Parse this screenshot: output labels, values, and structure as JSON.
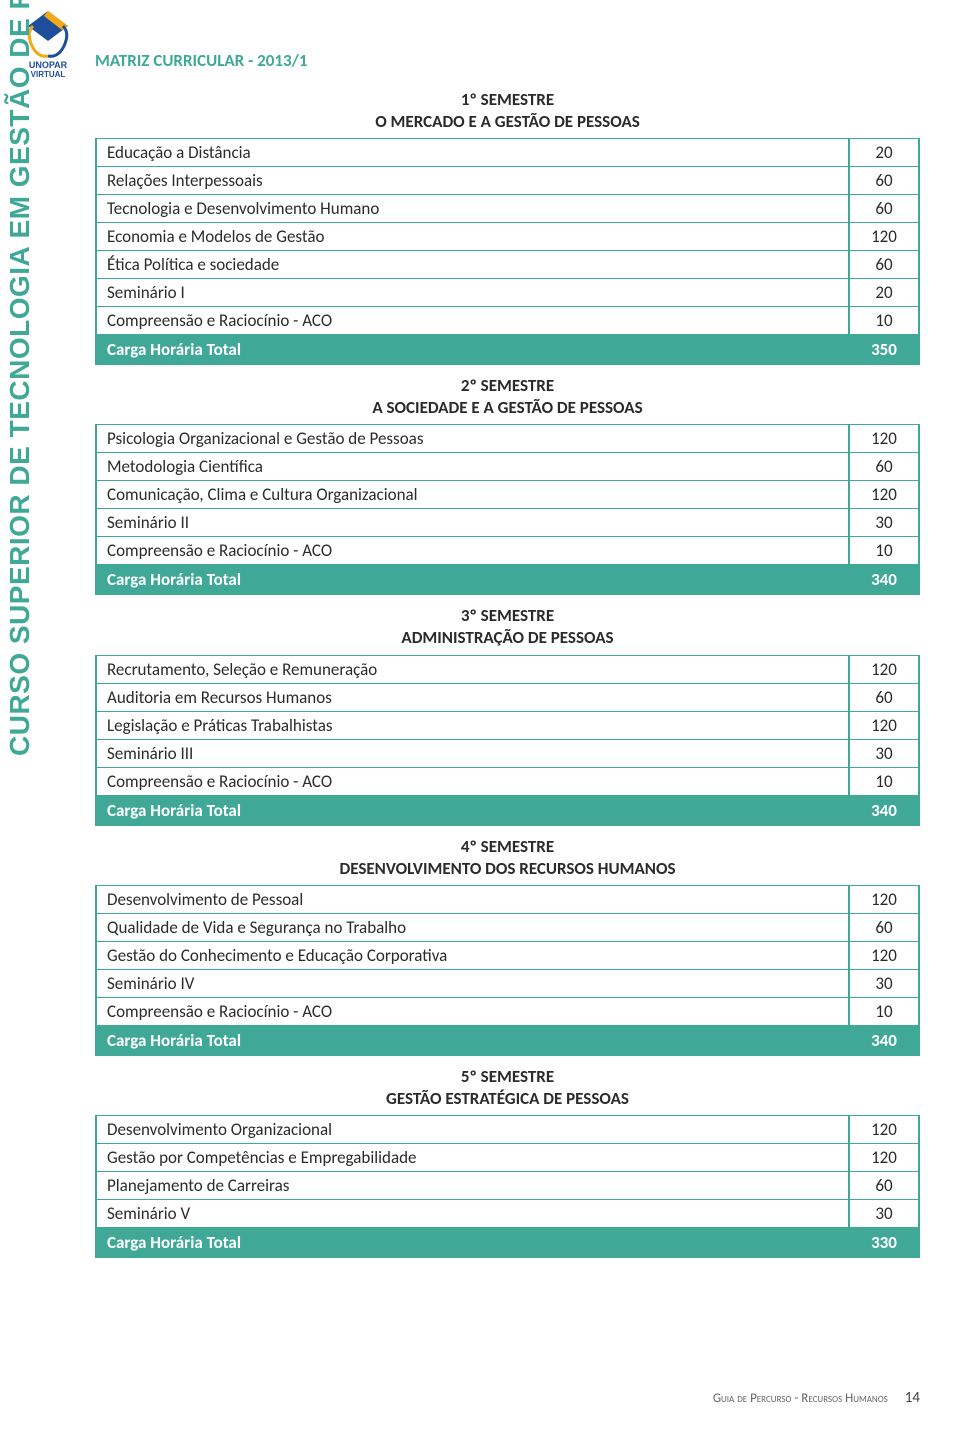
{
  "logo_label": "UNOPAR VIRTUAL",
  "vertical_label": "CURSO SUPERIOR DE TECNOLOGIA EM GESTÃO DE RECURSOS HUMANOS",
  "section_title": "MATRIZ CURRICULAR - 2013/1",
  "colors": {
    "accent": "#3fa896",
    "text": "#2b2b2b",
    "white": "#ffffff",
    "footer_text": "#666666",
    "logo_blue": "#1e4d9b",
    "logo_gold": "#f4a814"
  },
  "semesters": [
    {
      "header_line1": "1º SEMESTRE",
      "header_line2": "O MERCADO E A GESTÃO DE PESSOAS",
      "rows": [
        {
          "name": "Educação a Distância",
          "hours": "20"
        },
        {
          "name": "Relações Interpessoais",
          "hours": "60"
        },
        {
          "name": "Tecnologia e Desenvolvimento Humano",
          "hours": "60"
        },
        {
          "name": "Economia e Modelos de Gestão",
          "hours": "120"
        },
        {
          "name": "Ética Política e sociedade",
          "hours": "60"
        },
        {
          "name": "Seminário I",
          "hours": "20"
        },
        {
          "name": "Compreensão e Raciocínio - ACO",
          "hours": "10"
        }
      ],
      "total_label": "Carga Horária Total",
      "total_hours": "350"
    },
    {
      "header_line1": "2º SEMESTRE",
      "header_line2": "A SOCIEDADE E A GESTÃO DE PESSOAS",
      "rows": [
        {
          "name": "Psicologia Organizacional e Gestão de Pessoas",
          "hours": "120"
        },
        {
          "name": "Metodologia Científica",
          "hours": "60"
        },
        {
          "name": "Comunicação, Clima e Cultura Organizacional",
          "hours": "120"
        },
        {
          "name": "Seminário II",
          "hours": "30"
        },
        {
          "name": "Compreensão e Raciocínio - ACO",
          "hours": "10"
        }
      ],
      "total_label": "Carga Horária Total",
      "total_hours": "340"
    },
    {
      "header_line1": "3º SEMESTRE",
      "header_line2": "ADMINISTRAÇÃO DE PESSOAS",
      "rows": [
        {
          "name": "Recrutamento, Seleção e Remuneração",
          "hours": "120"
        },
        {
          "name": "Auditoria em Recursos Humanos",
          "hours": "60"
        },
        {
          "name": "Legislação e Práticas Trabalhistas",
          "hours": "120"
        },
        {
          "name": "Seminário III",
          "hours": "30"
        },
        {
          "name": "Compreensão e Raciocínio - ACO",
          "hours": "10"
        }
      ],
      "total_label": "Carga Horária Total",
      "total_hours": "340"
    },
    {
      "header_line1": "4º SEMESTRE",
      "header_line2": "DESENVOLVIMENTO DOS RECURSOS HUMANOS",
      "rows": [
        {
          "name": "Desenvolvimento de Pessoal",
          "hours": "120"
        },
        {
          "name": "Qualidade de Vida e Segurança no Trabalho",
          "hours": "60"
        },
        {
          "name": "Gestão do Conhecimento e Educação Corporativa",
          "hours": "120"
        },
        {
          "name": "Seminário IV",
          "hours": "30"
        },
        {
          "name": "Compreensão e Raciocínio - ACO",
          "hours": "10"
        }
      ],
      "total_label": "Carga Horária Total",
      "total_hours": "340"
    },
    {
      "header_line1": "5º SEMESTRE",
      "header_line2": "GESTÃO ESTRATÉGICA DE PESSOAS",
      "rows": [
        {
          "name": "Desenvolvimento Organizacional",
          "hours": "120"
        },
        {
          "name": "Gestão por Competências e Empregabilidade",
          "hours": "120"
        },
        {
          "name": "Planejamento de Carreiras",
          "hours": "60"
        },
        {
          "name": "Seminário V",
          "hours": "30"
        }
      ],
      "total_label": "Carga Horária Total",
      "total_hours": "330"
    }
  ],
  "footer_text": "Guia de Percurso - Recursos Humanos",
  "page_number": "14"
}
